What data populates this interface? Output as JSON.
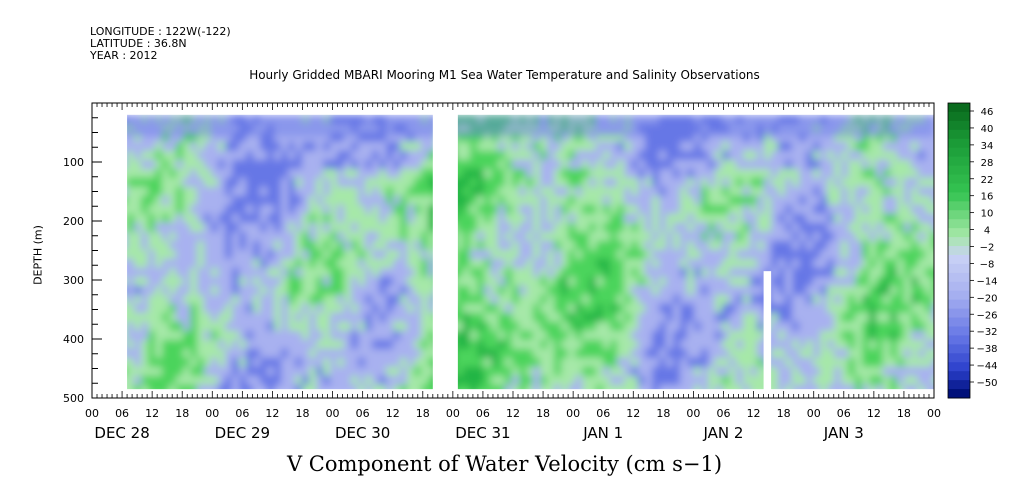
{
  "header": {
    "longitude": "LONGITUDE : 122W(-122)",
    "latitude": "LATITUDE : 36.8N",
    "year": "YEAR : 2012"
  },
  "chart_data": {
    "type": "heatmap",
    "title": "Hourly Gridded MBARI Mooring M1 Sea Water Temperature and Salinity Observations",
    "xlabel": "V Component of Water Velocity (cm s−1)",
    "ylabel": "DEPTH (m)",
    "x_range": [
      "2011-12-28T00:00",
      "2012-01-04T00:00"
    ],
    "x_hour_ticks": [
      "00",
      "06",
      "12",
      "18",
      "00",
      "06",
      "12",
      "18",
      "00",
      "06",
      "12",
      "18",
      "00",
      "06",
      "12",
      "18",
      "00",
      "06",
      "12",
      "18",
      "00",
      "06",
      "12",
      "18",
      "00",
      "06",
      "12",
      "18",
      "00"
    ],
    "x_day_labels": [
      "DEC 28",
      "DEC 29",
      "DEC 30",
      "DEC 31",
      "JAN  1",
      "JAN  2",
      "JAN  3"
    ],
    "ylim": [
      500,
      0
    ],
    "y_ticks": [
      100,
      200,
      300,
      400,
      500
    ],
    "data_depth_range": [
      20,
      485
    ],
    "colorbar": {
      "labels": [
        "46",
        "40",
        "34",
        "28",
        "22",
        "16",
        "10",
        "4",
        "-2",
        "-8",
        "-14",
        "-20",
        "-26",
        "-32",
        "-38",
        "-44",
        "-50"
      ],
      "range": [
        -50,
        49
      ]
    },
    "data_gaps": [
      {
        "from": "2011-12-28T00:00",
        "to": "2011-12-28T07:00",
        "depth_from": 0,
        "depth_to": 500
      },
      {
        "from": "2011-12-30T20:00",
        "to": "2011-12-31T01:00",
        "depth_from": 0,
        "depth_to": 500
      },
      {
        "from": "2012-01-02T14:00",
        "to": "2012-01-02T15:30",
        "depth_from": 285,
        "depth_to": 500
      }
    ],
    "grid": false
  },
  "colors": {
    "negative_strong": "#0c1e9c",
    "negative_mid": "#6677e6",
    "negative_weak": "#a8b1f0",
    "positive_weak": "#a6e8a8",
    "positive_mid": "#4bd45c",
    "positive_strong": "#0a6b1e"
  }
}
